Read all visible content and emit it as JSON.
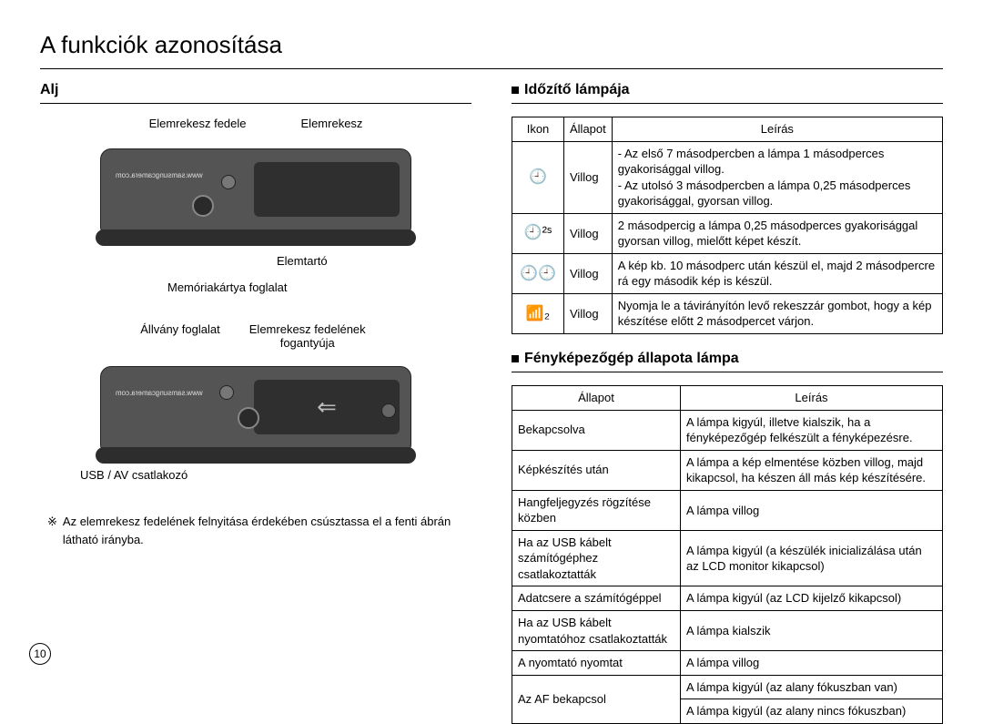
{
  "title": "A funkciók azonosítása",
  "left": {
    "heading": "Alj",
    "labels": {
      "batt_cover": "Elemrekesz fedele",
      "batt_compartment": "Elemrekesz",
      "batt_holder": "Elemtartó",
      "mem_slot": "Memóriakártya foglalat",
      "tripod": "Állvány foglalat",
      "cover_handle": "Elemrekesz fedelének fogantyúja",
      "usb": "USB / AV csatlakozó",
      "url": "www.samsungcamera.com"
    },
    "note_marker": "※",
    "note": "Az elemrekesz fedelének felnyitása érdekében csúsztassa el a fenti ábrán látható irányba."
  },
  "right": {
    "timer": {
      "heading": "Időzítő lámpája",
      "headers": [
        "Ikon",
        "Állapot",
        "Leírás"
      ],
      "rows": [
        {
          "icon": "🕘",
          "status": "Villog",
          "desc": "- Az első 7 másodpercben a lámpa 1 másodperces gyakorisággal villog.\n- Az utolsó 3 másodpercben a lámpa 0,25 másodperces gyakorisággal, gyorsan villog."
        },
        {
          "icon": "🕘²ˢ",
          "status": "Villog",
          "desc": "2 másodpercig a lámpa 0,25 másodperces gyakorisággal gyorsan villog, mielőtt képet készít."
        },
        {
          "icon": "🕘🕘",
          "status": "Villog",
          "desc": "A kép kb. 10 másodperc után készül el, majd 2 másodpercre rá egy második kép is készül."
        },
        {
          "icon": "📶₂",
          "status": "Villog",
          "desc": "Nyomja le a távirányítón levő rekeszzár gombot, hogy a kép készítése előtt 2 másodpercet várjon."
        }
      ]
    },
    "status": {
      "heading": "Fényképezőgép állapota lámpa",
      "headers": [
        "Állapot",
        "Leírás"
      ],
      "rows": [
        {
          "s": "Bekapcsolva",
          "d": "A lámpa kigyúl, illetve kialszik, ha a fényképezőgép felkészült a fényképezésre."
        },
        {
          "s": "Képkészítés után",
          "d": "A lámpa a kép elmentése közben villog, majd kikapcsol, ha készen áll más kép készítésére."
        },
        {
          "s": "Hangfeljegyzés rögzítése közben",
          "d": "A lámpa villog"
        },
        {
          "s": "Ha az USB kábelt számítógéphez csatlakoztatták",
          "d": "A lámpa kigyúl (a készülék inicializálása után az LCD monitor kikapcsol)"
        },
        {
          "s": "Adatcsere a számítógéppel",
          "d": "A lámpa kigyúl (az LCD kijelző kikapcsol)"
        },
        {
          "s": "Ha az USB kábelt nyomtatóhoz csatlakoztatták",
          "d": "A lámpa kialszik"
        },
        {
          "s": "A nyomtató nyomtat",
          "d": "A lámpa villog"
        }
      ],
      "af_row": {
        "s": "Az AF bekapcsol",
        "d1": "A lámpa kigyúl (az alany fókuszban van)",
        "d2": "A lámpa kigyúl (az alany nincs fókuszban)"
      }
    }
  },
  "page_number": "10"
}
